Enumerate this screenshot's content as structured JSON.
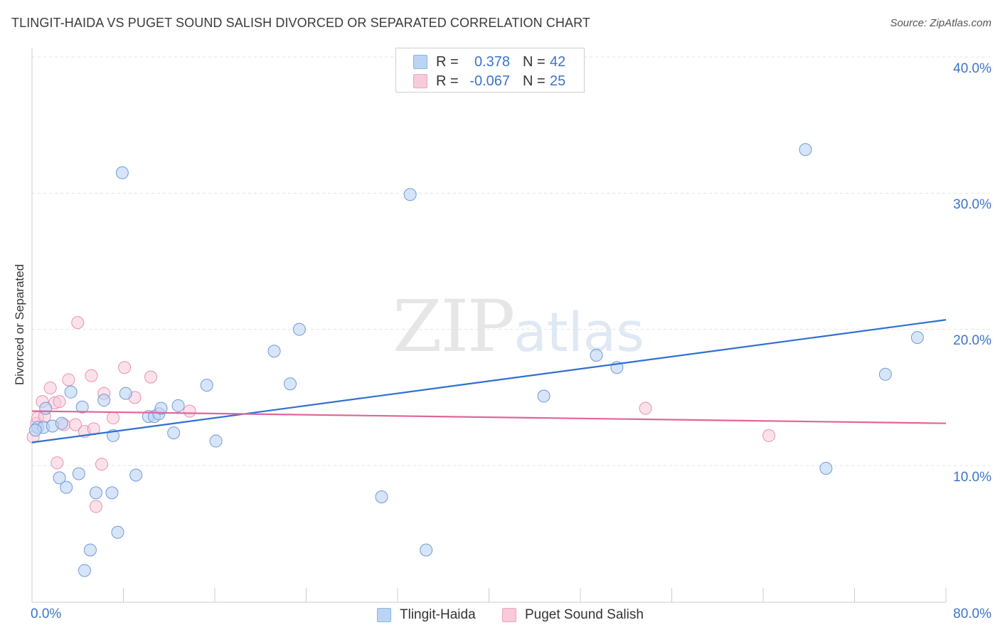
{
  "header": {
    "title": "TLINGIT-HAIDA VS PUGET SOUND SALISH DIVORCED OR SEPARATED CORRELATION CHART",
    "source": "Source: ZipAtlas.com"
  },
  "watermark": {
    "zip": "ZIP",
    "atlas": "atlas"
  },
  "legend": {
    "rows": [
      {
        "r_label": "R =",
        "r_value": "0.378",
        "n_label": "N =",
        "n_value": "42",
        "color": "#8ab4ea",
        "fill": "#bcd4f4"
      },
      {
        "r_label": "R =",
        "r_value": "-0.067",
        "n_label": "N =",
        "n_value": "25",
        "color": "#f0a3bd",
        "fill": "#f8cbd9"
      }
    ]
  },
  "bottom_legend": {
    "series_a": "Tlingit-Haida",
    "series_b": "Puget Sound Salish"
  },
  "axes": {
    "ylabel": "Divorced or Separated",
    "x_min_label": "0.0%",
    "x_max_label": "80.0%",
    "y_tick_labels": [
      "10.0%",
      "20.0%",
      "30.0%",
      "40.0%"
    ]
  },
  "colors": {
    "blue_point_fill": "#bcd4f4",
    "blue_point_stroke": "#6f9bd8",
    "blue_line": "#2f6fd0",
    "pink_point_fill": "#f8cbd9",
    "pink_point_stroke": "#e990ae",
    "pink_line": "#e0659a",
    "grid": "#e3e3e3",
    "axis": "#cccccc"
  },
  "chart_data": {
    "type": "scatter",
    "title": "TLINGIT-HAIDA VS PUGET SOUND SALISH DIVORCED OR SEPARATED CORRELATION CHART",
    "xlabel": "",
    "ylabel": "Divorced or Separated",
    "xlim": [
      0,
      80
    ],
    "ylim": [
      0,
      41
    ],
    "y_ticks": [
      10,
      20,
      30,
      40
    ],
    "grid": true,
    "series": [
      {
        "name": "Tlingit-Haida",
        "R": 0.378,
        "N": 42,
        "trend": {
          "x": [
            0,
            80
          ],
          "y": [
            11.7,
            20.7
          ]
        },
        "points": [
          {
            "x": 0.5,
            "y": 12.8
          },
          {
            "x": 1.0,
            "y": 12.8
          },
          {
            "x": 1.2,
            "y": 14.2
          },
          {
            "x": 1.8,
            "y": 12.9
          },
          {
            "x": 2.4,
            "y": 9.1
          },
          {
            "x": 2.6,
            "y": 13.1
          },
          {
            "x": 3.0,
            "y": 8.4
          },
          {
            "x": 3.4,
            "y": 15.4
          },
          {
            "x": 4.1,
            "y": 9.4
          },
          {
            "x": 4.4,
            "y": 14.3
          },
          {
            "x": 4.6,
            "y": 2.3
          },
          {
            "x": 5.1,
            "y": 3.8
          },
          {
            "x": 5.6,
            "y": 8.0
          },
          {
            "x": 6.3,
            "y": 14.8
          },
          {
            "x": 7.0,
            "y": 8.0
          },
          {
            "x": 7.1,
            "y": 12.2
          },
          {
            "x": 7.5,
            "y": 5.1
          },
          {
            "x": 7.9,
            "y": 31.5
          },
          {
            "x": 8.2,
            "y": 15.3
          },
          {
            "x": 9.1,
            "y": 9.3
          },
          {
            "x": 10.2,
            "y": 13.6
          },
          {
            "x": 10.7,
            "y": 13.6
          },
          {
            "x": 11.1,
            "y": 13.8
          },
          {
            "x": 11.3,
            "y": 14.2
          },
          {
            "x": 12.4,
            "y": 12.4
          },
          {
            "x": 12.8,
            "y": 14.4
          },
          {
            "x": 15.3,
            "y": 15.9
          },
          {
            "x": 16.1,
            "y": 11.8
          },
          {
            "x": 21.2,
            "y": 18.4
          },
          {
            "x": 22.6,
            "y": 16.0
          },
          {
            "x": 23.4,
            "y": 20.0
          },
          {
            "x": 30.6,
            "y": 7.7
          },
          {
            "x": 33.1,
            "y": 29.9
          },
          {
            "x": 34.5,
            "y": 3.8
          },
          {
            "x": 44.8,
            "y": 15.1
          },
          {
            "x": 49.4,
            "y": 18.1
          },
          {
            "x": 51.2,
            "y": 17.2
          },
          {
            "x": 67.7,
            "y": 33.2
          },
          {
            "x": 69.5,
            "y": 9.8
          },
          {
            "x": 74.7,
            "y": 16.7
          },
          {
            "x": 77.5,
            "y": 19.4
          },
          {
            "x": 0.3,
            "y": 12.6
          }
        ]
      },
      {
        "name": "Puget Sound Salish",
        "R": -0.067,
        "N": 25,
        "trend": {
          "x": [
            0,
            80
          ],
          "y": [
            14.0,
            13.1
          ]
        },
        "points": [
          {
            "x": 0.1,
            "y": 12.1
          },
          {
            "x": 0.4,
            "y": 13.1
          },
          {
            "x": 0.5,
            "y": 13.5
          },
          {
            "x": 0.9,
            "y": 14.7
          },
          {
            "x": 1.1,
            "y": 13.6
          },
          {
            "x": 1.6,
            "y": 15.7
          },
          {
            "x": 2.0,
            "y": 14.6
          },
          {
            "x": 2.2,
            "y": 10.2
          },
          {
            "x": 2.4,
            "y": 14.7
          },
          {
            "x": 2.8,
            "y": 13.0
          },
          {
            "x": 3.2,
            "y": 16.3
          },
          {
            "x": 3.8,
            "y": 13.0
          },
          {
            "x": 4.0,
            "y": 20.5
          },
          {
            "x": 4.6,
            "y": 12.5
          },
          {
            "x": 5.2,
            "y": 16.6
          },
          {
            "x": 5.4,
            "y": 12.7
          },
          {
            "x": 5.6,
            "y": 7.0
          },
          {
            "x": 6.1,
            "y": 10.1
          },
          {
            "x": 6.3,
            "y": 15.3
          },
          {
            "x": 7.1,
            "y": 13.5
          },
          {
            "x": 8.1,
            "y": 17.2
          },
          {
            "x": 9.0,
            "y": 15.0
          },
          {
            "x": 10.4,
            "y": 16.5
          },
          {
            "x": 13.8,
            "y": 14.0
          },
          {
            "x": 53.7,
            "y": 14.2
          }
        ],
        "extra_points": [
          {
            "x": 64.5,
            "y": 12.2
          }
        ]
      }
    ]
  }
}
